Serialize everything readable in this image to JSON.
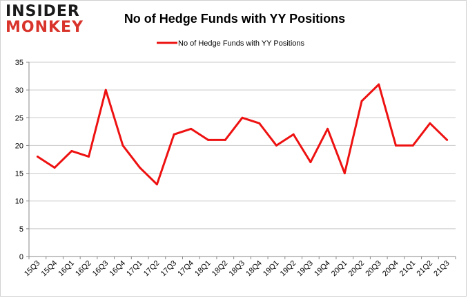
{
  "logo": {
    "line1": "INSIDER",
    "line2": "MONKEY"
  },
  "chart_data": {
    "type": "line",
    "title": "No of Hedge Funds with YY Positions",
    "xlabel": "",
    "ylabel": "",
    "categories": [
      "15Q3",
      "15Q4",
      "16Q1",
      "16Q2",
      "16Q3",
      "16Q4",
      "17Q1",
      "17Q2",
      "17Q3",
      "17Q4",
      "18Q1",
      "18Q2",
      "18Q3",
      "18Q4",
      "19Q1",
      "19Q2",
      "19Q3",
      "19Q4",
      "20Q1",
      "20Q2",
      "20Q3",
      "20Q4",
      "21Q1",
      "21Q2",
      "21Q3"
    ],
    "series": [
      {
        "name": "No of Hedge Funds with YY Positions",
        "color": "#ee1111",
        "values": [
          18,
          16,
          19,
          18,
          30,
          20,
          16,
          13,
          22,
          23,
          21,
          21,
          25,
          24,
          20,
          22,
          17,
          23,
          15,
          28,
          31,
          20,
          20,
          24,
          21
        ]
      }
    ],
    "ylim": [
      0,
      35
    ],
    "yticks": [
      0,
      5,
      10,
      15,
      20,
      25,
      30,
      35
    ],
    "grid": true,
    "legend": "top-center"
  }
}
